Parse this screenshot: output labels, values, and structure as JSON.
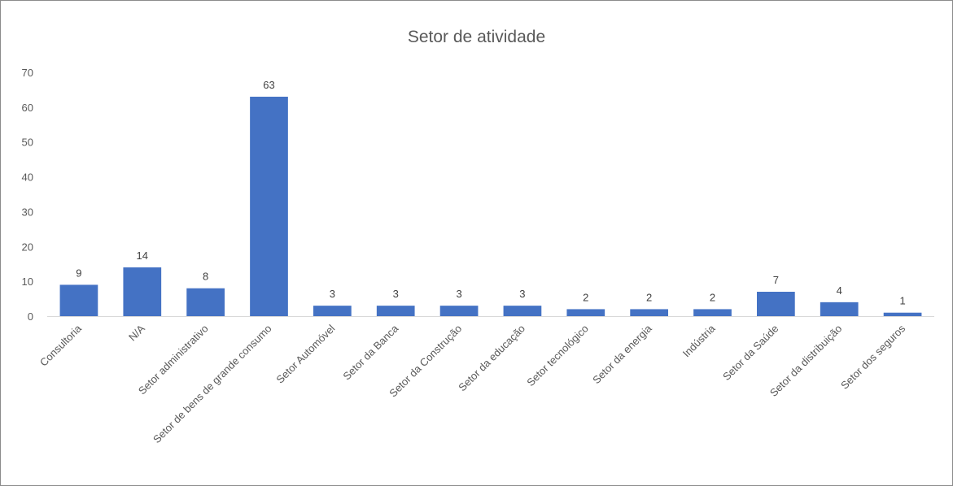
{
  "chart_data": {
    "type": "bar",
    "title": "Setor de atividade",
    "xlabel": "",
    "ylabel": "",
    "ylim": [
      0,
      70
    ],
    "yticks": [
      0,
      10,
      20,
      30,
      40,
      50,
      60,
      70
    ],
    "grid": false,
    "legend": "none",
    "bar_color": "#4472c4",
    "categories": [
      "Consultoria",
      "N/A",
      "Setor administrativo",
      "Setor de bens de grande consumo",
      "Setor Automóvel",
      "Setor da Banca",
      "Setor da Construção",
      "Setor da educação",
      "Setor tecnológico",
      "Setor da energia",
      "Indústria",
      "Setor da Saúde",
      "Setor da distribuição",
      "Setor dos seguros"
    ],
    "values": [
      9,
      14,
      8,
      63,
      3,
      3,
      3,
      3,
      2,
      2,
      2,
      7,
      4,
      1
    ]
  }
}
